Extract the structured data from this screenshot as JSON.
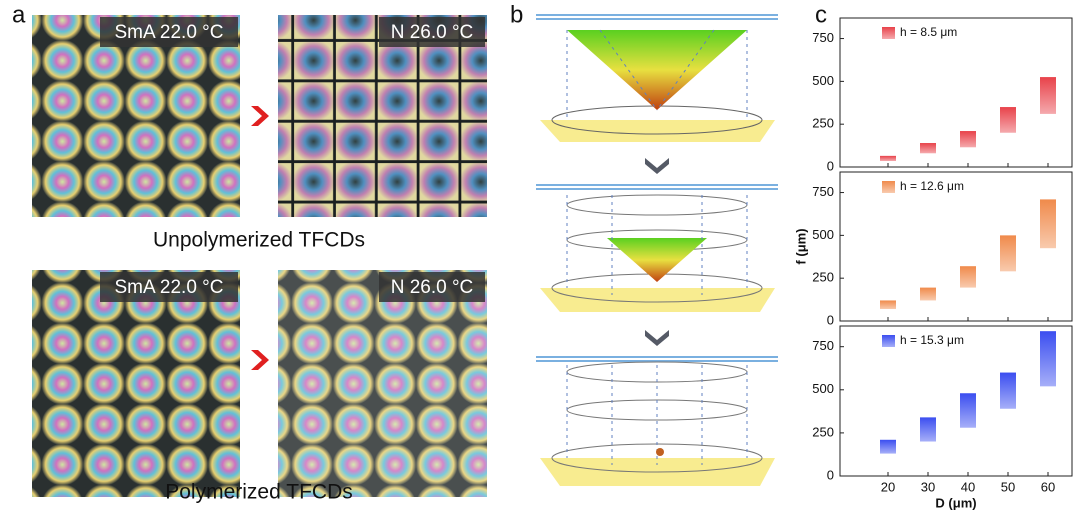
{
  "panel_labels": [
    "a",
    "b",
    "c"
  ],
  "panel_a": {
    "images": [
      {
        "label": "SmA 22.0 °C"
      },
      {
        "label": "N 26.0 °C"
      },
      {
        "label": "SmA 22.0 °C"
      },
      {
        "label": "N 26.0 °C"
      }
    ],
    "captions": [
      "Unpolymerized TFCDs",
      "Polymerized TFCDs"
    ]
  },
  "chart_data": [
    {
      "type": "bar",
      "x": [
        20,
        30,
        40,
        50,
        60
      ],
      "xlim": [
        8,
        66
      ],
      "ylim": [
        0,
        870
      ],
      "yticks": [
        0,
        250,
        500,
        750
      ],
      "legend": "upper left",
      "series": [
        {
          "name": "h = 8.5 μm",
          "color": "#e8424a",
          "low": [
            35,
            80,
            115,
            200,
            310
          ],
          "high": [
            65,
            140,
            210,
            350,
            525
          ]
        }
      ]
    },
    {
      "type": "bar",
      "x": [
        20,
        30,
        40,
        50,
        60
      ],
      "xlim": [
        8,
        66
      ],
      "ylim": [
        0,
        870
      ],
      "yticks": [
        0,
        250,
        500,
        750
      ],
      "legend": "upper left",
      "ylabel": "f (μm)",
      "series": [
        {
          "name": "h = 12.6 μm",
          "color": "#f08a4b",
          "low": [
            70,
            120,
            195,
            290,
            425
          ],
          "high": [
            120,
            195,
            320,
            500,
            710
          ]
        }
      ]
    },
    {
      "type": "bar",
      "x": [
        20,
        30,
        40,
        50,
        60
      ],
      "xlim": [
        8,
        66
      ],
      "ylim": [
        0,
        870
      ],
      "yticks": [
        0,
        250,
        500,
        750
      ],
      "legend": "upper left",
      "xticks": [
        20,
        30,
        40,
        50,
        60
      ],
      "xlabel": "D (μm)",
      "series": [
        {
          "name": "h = 15.3 μm",
          "color": "#3b4ef0",
          "low": [
            130,
            200,
            280,
            390,
            520
          ],
          "high": [
            210,
            340,
            480,
            600,
            840
          ]
        }
      ]
    }
  ]
}
